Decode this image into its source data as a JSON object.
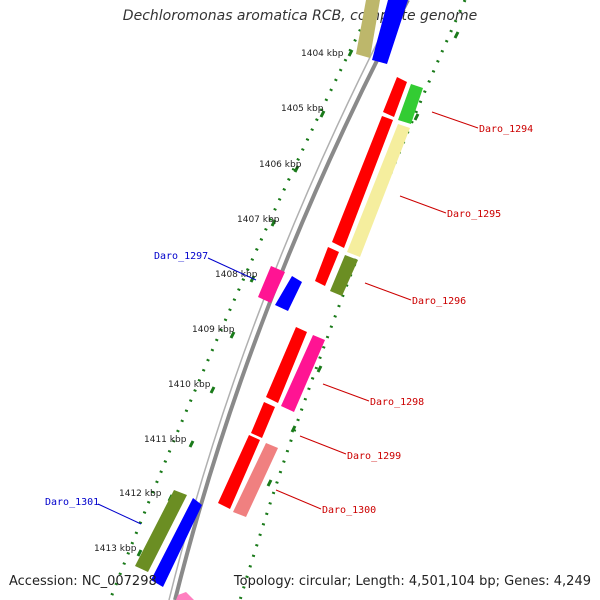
{
  "title": "Dechloromonas aromatica RCB, complete genome",
  "footer": {
    "accession": "Accession: NC_007298",
    "topology": "Topology: circular; Length: 4,501,104 bp; Genes: 4,249"
  },
  "colors": {
    "backbone": "#8a8a8a",
    "tick_track": "#1a7a1a",
    "label_right": "#cc0000",
    "label_left": "#0000cc"
  },
  "ticks": [
    {
      "label": "1404 kbp"
    },
    {
      "label": "1405 kbp"
    },
    {
      "label": "1406 kbp"
    },
    {
      "label": "1407 kbp"
    },
    {
      "label": "1408 kbp"
    },
    {
      "label": "1409 kbp"
    },
    {
      "label": "1410 kbp"
    },
    {
      "label": "1411 kbp"
    },
    {
      "label": "1412 kbp"
    },
    {
      "label": "1413 kbp"
    }
  ],
  "genes": [
    {
      "name": "Daro_1294",
      "color": "#33cc33"
    },
    {
      "name": "Daro_1295",
      "color": "#f5ee9e"
    },
    {
      "name": "Daro_1296",
      "color": "#6b8e23"
    },
    {
      "name": "Daro_1297",
      "color": "#ff1493"
    },
    {
      "name": "Daro_1298",
      "color": "#ff1493"
    },
    {
      "name": "Daro_1299",
      "color": "#ff0000"
    },
    {
      "name": "Daro_1300",
      "color": "#f08080"
    },
    {
      "name": "Daro_1301",
      "color": "#6b8e23"
    }
  ]
}
